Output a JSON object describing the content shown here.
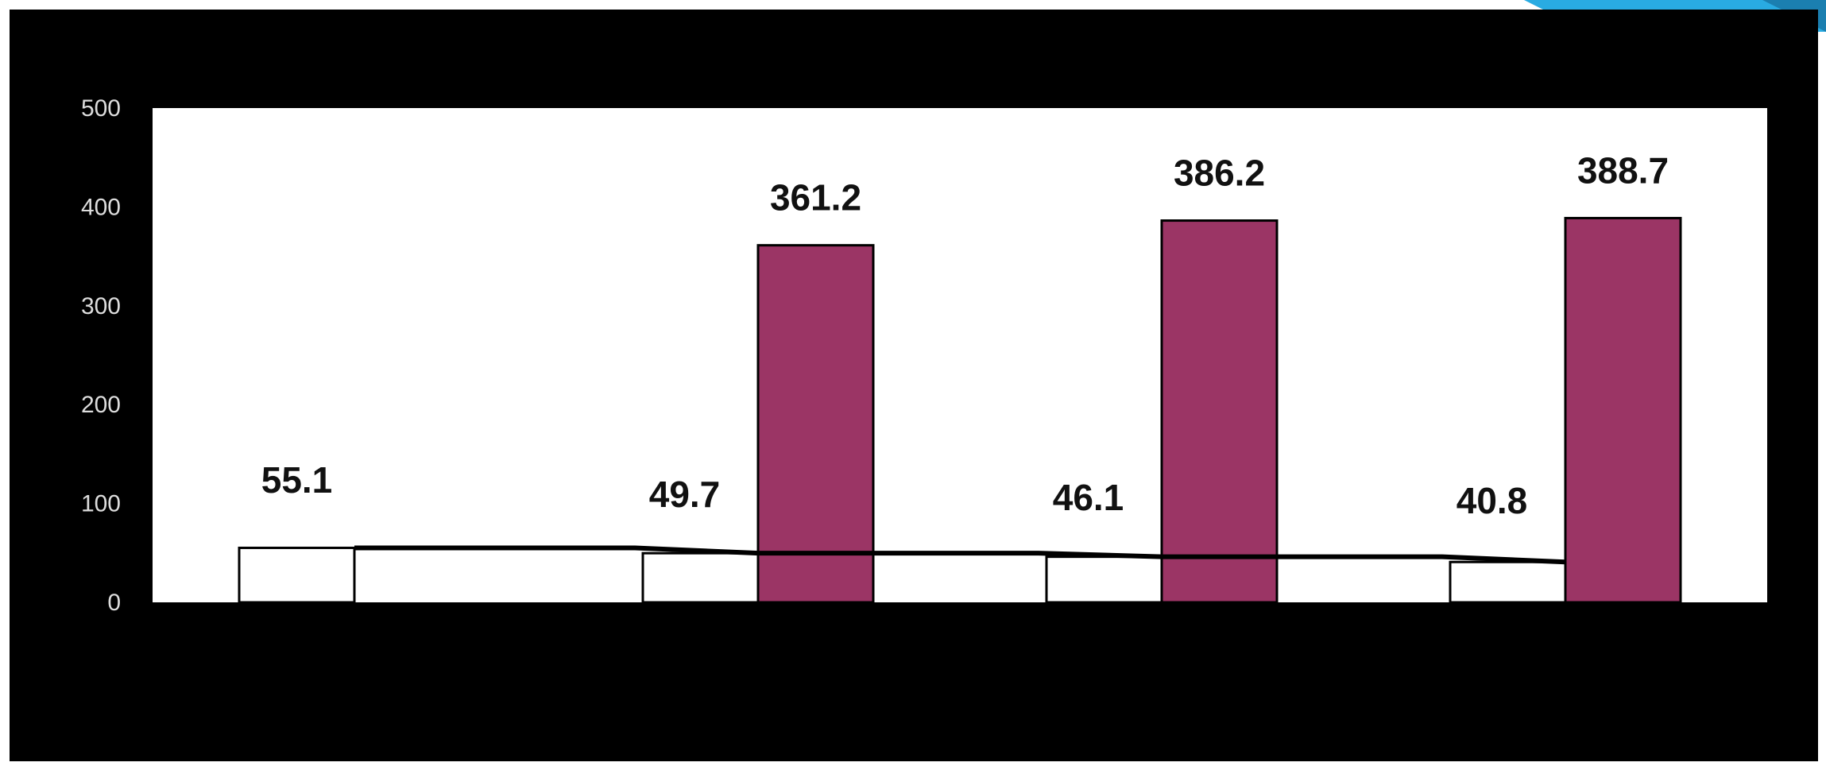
{
  "chart_data": {
    "type": "bar",
    "title": "",
    "xlabel": "",
    "ylabel": "",
    "categories": [
      "",
      "",
      "",
      ""
    ],
    "series": [
      {
        "values": [
          55.1,
          49.7,
          46.1,
          40.8
        ],
        "color": "#ffffff"
      },
      {
        "values": [
          null,
          361.2,
          386.2,
          388.7
        ],
        "color": "#9b3565"
      }
    ],
    "data_labels": {
      "series_0": [
        "55.1",
        "49.7",
        "46.1",
        "40.8"
      ],
      "series_1": [
        "",
        "361.2",
        "386.2",
        "388.7"
      ]
    },
    "yticks": [
      0,
      100,
      200,
      300,
      400,
      500
    ],
    "ylim": [
      0,
      500
    ],
    "trend_line": {
      "values": [
        55.1,
        49.7,
        46.1,
        40.8
      ],
      "color": "#000000"
    },
    "grid": false,
    "legend": "none",
    "colors": {
      "background": "#000000",
      "plot_area": "#ffffff",
      "series_0": "#ffffff",
      "series_1": "#9b3565",
      "accent": "#29abe2"
    }
  }
}
